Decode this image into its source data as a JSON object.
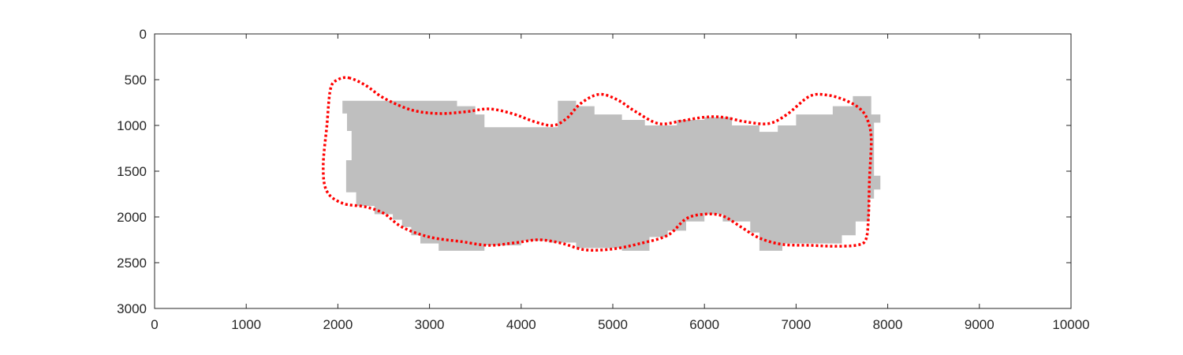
{
  "chart_data": {
    "type": "area",
    "title": "",
    "xlabel": "",
    "ylabel": "",
    "xlim": [
      0,
      10000
    ],
    "ylim": [
      0,
      3000
    ],
    "y_reversed": true,
    "grid": false,
    "legend": "none",
    "x_ticks": [
      0,
      1000,
      2000,
      3000,
      4000,
      5000,
      6000,
      7000,
      8000,
      9000,
      10000
    ],
    "y_ticks": [
      0,
      500,
      1000,
      1500,
      2000,
      2500,
      3000
    ],
    "colors": {
      "region": "#bfbfbf",
      "contour": "#ff0000",
      "axes": "#262626"
    },
    "series": [
      {
        "kind": "filled-region",
        "upper": [
          [
            2050,
            730
          ],
          [
            3300,
            730
          ],
          [
            3300,
            790
          ],
          [
            3500,
            790
          ],
          [
            3500,
            880
          ],
          [
            3600,
            880
          ],
          [
            3600,
            1020
          ],
          [
            4400,
            1020
          ],
          [
            4400,
            730
          ],
          [
            4600,
            730
          ],
          [
            4600,
            790
          ],
          [
            4800,
            790
          ],
          [
            4800,
            880
          ],
          [
            5100,
            880
          ],
          [
            5100,
            940
          ],
          [
            5350,
            940
          ],
          [
            5350,
            1000
          ],
          [
            5700,
            1000
          ],
          [
            5700,
            940
          ],
          [
            6000,
            940
          ],
          [
            6000,
            910
          ],
          [
            6300,
            910
          ],
          [
            6300,
            1000
          ],
          [
            6600,
            1000
          ],
          [
            6600,
            1070
          ],
          [
            6800,
            1070
          ],
          [
            6800,
            1000
          ],
          [
            7000,
            1000
          ],
          [
            7000,
            880
          ],
          [
            7400,
            880
          ],
          [
            7400,
            790
          ],
          [
            7620,
            790
          ],
          [
            7620,
            680
          ],
          [
            7820,
            680
          ],
          [
            7820,
            880
          ],
          [
            7920,
            880
          ],
          [
            7920,
            970
          ],
          [
            7850,
            970
          ],
          [
            7850,
            1550
          ],
          [
            7920,
            1550
          ],
          [
            7920,
            1700
          ],
          [
            7850,
            1700
          ]
        ],
        "lower": [
          [
            2080,
            1730
          ],
          [
            2200,
            1730
          ],
          [
            2200,
            1880
          ],
          [
            2400,
            1880
          ],
          [
            2400,
            1970
          ],
          [
            2600,
            1970
          ],
          [
            2600,
            2030
          ],
          [
            2700,
            2030
          ],
          [
            2700,
            2110
          ],
          [
            2800,
            2110
          ],
          [
            2800,
            2200
          ],
          [
            2900,
            2200
          ],
          [
            2900,
            2290
          ],
          [
            3100,
            2290
          ],
          [
            3100,
            2370
          ],
          [
            3600,
            2370
          ],
          [
            3600,
            2310
          ],
          [
            4000,
            2310
          ],
          [
            4000,
            2260
          ],
          [
            4300,
            2260
          ],
          [
            4300,
            2280
          ],
          [
            4600,
            2280
          ],
          [
            4600,
            2340
          ],
          [
            5100,
            2340
          ],
          [
            5100,
            2370
          ],
          [
            5400,
            2370
          ],
          [
            5400,
            2220
          ],
          [
            5600,
            2220
          ],
          [
            5600,
            2150
          ],
          [
            5800,
            2150
          ],
          [
            5800,
            2050
          ],
          [
            6000,
            2050
          ],
          [
            6000,
            1970
          ],
          [
            6200,
            1970
          ],
          [
            6200,
            2050
          ],
          [
            6500,
            2050
          ],
          [
            6500,
            2170
          ],
          [
            6600,
            2170
          ],
          [
            6600,
            2370
          ],
          [
            6850,
            2370
          ],
          [
            6850,
            2290
          ],
          [
            7500,
            2290
          ],
          [
            7500,
            2200
          ],
          [
            7650,
            2200
          ],
          [
            7650,
            2050
          ],
          [
            7800,
            2050
          ],
          [
            7800,
            1800
          ],
          [
            7850,
            1800
          ]
        ],
        "left": [
          [
            2050,
            730
          ],
          [
            2050,
            870
          ],
          [
            2100,
            870
          ],
          [
            2100,
            1060
          ],
          [
            2150,
            1060
          ],
          [
            2150,
            1380
          ],
          [
            2090,
            1380
          ],
          [
            2090,
            1730
          ]
        ]
      },
      {
        "kind": "closed-contour",
        "points": [
          [
            2120,
            480
          ],
          [
            2300,
            560
          ],
          [
            2500,
            700
          ],
          [
            2800,
            830
          ],
          [
            3100,
            870
          ],
          [
            3400,
            850
          ],
          [
            3650,
            820
          ],
          [
            3900,
            870
          ],
          [
            4150,
            960
          ],
          [
            4350,
            1000
          ],
          [
            4500,
            920
          ],
          [
            4650,
            760
          ],
          [
            4850,
            660
          ],
          [
            5050,
            720
          ],
          [
            5250,
            850
          ],
          [
            5500,
            980
          ],
          [
            5750,
            950
          ],
          [
            6000,
            910
          ],
          [
            6200,
            910
          ],
          [
            6450,
            960
          ],
          [
            6700,
            980
          ],
          [
            6900,
            880
          ],
          [
            7150,
            680
          ],
          [
            7350,
            670
          ],
          [
            7550,
            730
          ],
          [
            7700,
            820
          ],
          [
            7780,
            940
          ],
          [
            7820,
            1150
          ],
          [
            7800,
            1600
          ],
          [
            7790,
            2000
          ],
          [
            7760,
            2250
          ],
          [
            7650,
            2310
          ],
          [
            7400,
            2320
          ],
          [
            7150,
            2310
          ],
          [
            6850,
            2300
          ],
          [
            6600,
            2230
          ],
          [
            6400,
            2110
          ],
          [
            6200,
            1990
          ],
          [
            6000,
            1970
          ],
          [
            5800,
            2020
          ],
          [
            5600,
            2200
          ],
          [
            5300,
            2290
          ],
          [
            5000,
            2350
          ],
          [
            4700,
            2360
          ],
          [
            4450,
            2290
          ],
          [
            4200,
            2250
          ],
          [
            3950,
            2280
          ],
          [
            3650,
            2310
          ],
          [
            3350,
            2270
          ],
          [
            3000,
            2220
          ],
          [
            2700,
            2110
          ],
          [
            2500,
            1960
          ],
          [
            2300,
            1890
          ],
          [
            2050,
            1850
          ],
          [
            1880,
            1720
          ],
          [
            1840,
            1450
          ],
          [
            1880,
            1000
          ],
          [
            1920,
            600
          ],
          [
            2000,
            500
          ]
        ]
      }
    ]
  }
}
